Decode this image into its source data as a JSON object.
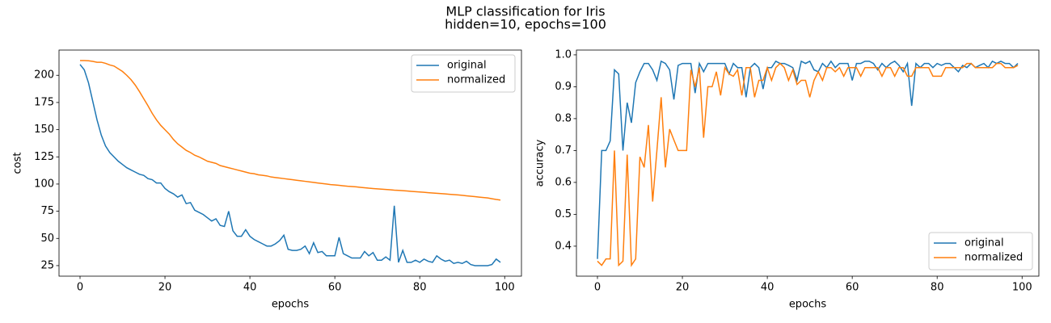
{
  "suptitle": [
    "MLP classification for Iris",
    "hidden=10, epochs=100"
  ],
  "chart_data": [
    {
      "type": "line",
      "xlabel": "epochs",
      "ylabel": "cost",
      "x": [
        0,
        1,
        2,
        3,
        4,
        5,
        6,
        7,
        8,
        9,
        10,
        11,
        12,
        13,
        14,
        15,
        16,
        17,
        18,
        19,
        20,
        21,
        22,
        23,
        24,
        25,
        26,
        27,
        28,
        29,
        30,
        31,
        32,
        33,
        34,
        35,
        36,
        37,
        38,
        39,
        40,
        41,
        42,
        43,
        44,
        45,
        46,
        47,
        48,
        49,
        50,
        51,
        52,
        53,
        54,
        55,
        56,
        57,
        58,
        59,
        60,
        61,
        62,
        63,
        64,
        65,
        66,
        67,
        68,
        69,
        70,
        71,
        72,
        73,
        74,
        75,
        76,
        77,
        78,
        79,
        80,
        81,
        82,
        83,
        84,
        85,
        86,
        87,
        88,
        89,
        90,
        91,
        92,
        93,
        94,
        95,
        96,
        97,
        98,
        99
      ],
      "xlim": [
        -4.95,
        103.95
      ],
      "xticks": [
        0,
        20,
        40,
        60,
        80,
        100
      ],
      "ylim": [
        15.3,
        223.2
      ],
      "yticks": [
        25,
        50,
        75,
        100,
        125,
        150,
        175,
        200
      ],
      "legend": "upper right",
      "series": [
        {
          "name": "original",
          "color": "#1f77b4",
          "values": [
            210,
            205,
            193,
            176,
            159,
            145,
            135,
            129,
            125,
            121,
            118,
            115,
            113,
            111,
            109,
            108,
            105,
            104,
            101,
            101,
            96,
            93,
            91,
            88,
            90,
            82,
            83,
            76,
            74,
            72,
            69,
            66,
            68,
            62,
            61,
            75,
            57,
            52,
            52,
            58,
            52,
            49,
            47,
            45,
            43,
            43,
            45,
            48,
            53,
            40,
            39,
            39,
            40,
            43,
            36,
            46,
            37,
            38,
            34,
            34,
            34,
            51,
            36,
            34,
            32,
            32,
            32,
            38,
            34,
            37,
            30,
            30,
            33,
            30,
            80,
            28,
            39,
            28,
            28,
            30,
            28,
            31,
            29,
            28,
            34,
            31,
            29,
            30,
            27,
            28,
            27,
            29,
            26,
            25,
            25,
            25,
            25,
            26,
            31,
            28
          ]
        },
        {
          "name": "normalized",
          "color": "#ff7f0e",
          "values": [
            213.5,
            213.5,
            213.4,
            212.8,
            212,
            212,
            211,
            209.5,
            208.5,
            206,
            203.5,
            200,
            196,
            191,
            185,
            178.5,
            172,
            165,
            159,
            154,
            150,
            146,
            141,
            137,
            134,
            131,
            129,
            126.5,
            125,
            123,
            121,
            120,
            119,
            117,
            116,
            115,
            114,
            113,
            112,
            111,
            110,
            109.5,
            108.5,
            108,
            107.5,
            106.5,
            106,
            105.5,
            105,
            104.5,
            104,
            103.5,
            103,
            102.5,
            102,
            101.5,
            101,
            100.5,
            100,
            99.5,
            99.2,
            98.8,
            98.4,
            98,
            97.7,
            97.4,
            97,
            96.6,
            96.2,
            95.9,
            95.6,
            95.3,
            95,
            94.7,
            94.4,
            94.2,
            93.9,
            93.6,
            93.3,
            93,
            92.7,
            92.4,
            92.1,
            91.8,
            91.5,
            91.2,
            90.9,
            90.6,
            90.3,
            90,
            89.6,
            89.2,
            88.8,
            88.4,
            88,
            87.6,
            87.2,
            86.5,
            85.8,
            85.3
          ]
        }
      ]
    },
    {
      "type": "line",
      "xlabel": "epochs",
      "ylabel": "accuracy",
      "x": [
        0,
        1,
        2,
        3,
        4,
        5,
        6,
        7,
        8,
        9,
        10,
        11,
        12,
        13,
        14,
        15,
        16,
        17,
        18,
        19,
        20,
        21,
        22,
        23,
        24,
        25,
        26,
        27,
        28,
        29,
        30,
        31,
        32,
        33,
        34,
        35,
        36,
        37,
        38,
        39,
        40,
        41,
        42,
        43,
        44,
        45,
        46,
        47,
        48,
        49,
        50,
        51,
        52,
        53,
        54,
        55,
        56,
        57,
        58,
        59,
        60,
        61,
        62,
        63,
        64,
        65,
        66,
        67,
        68,
        69,
        70,
        71,
        72,
        73,
        74,
        75,
        76,
        77,
        78,
        79,
        80,
        81,
        82,
        83,
        84,
        85,
        86,
        87,
        88,
        89,
        90,
        91,
        92,
        93,
        94,
        95,
        96,
        97,
        98,
        99
      ],
      "xlim": [
        -4.95,
        103.95
      ],
      "xticks": [
        0,
        20,
        40,
        60,
        80,
        100
      ],
      "ylim": [
        0.306,
        1.015
      ],
      "yticks": [
        0.4,
        0.5,
        0.6,
        0.7,
        0.8,
        0.9,
        {
          "value": 1,
          "label": "1.0"
        }
      ],
      "legend": "lower right",
      "series": [
        {
          "name": "original",
          "color": "#1f77b4",
          "values": [
            0.36,
            0.7,
            0.7,
            0.73,
            0.953,
            0.94,
            0.7,
            0.85,
            0.787,
            0.913,
            0.947,
            0.973,
            0.973,
            0.953,
            0.92,
            0.98,
            0.973,
            0.953,
            0.86,
            0.967,
            0.973,
            0.973,
            0.973,
            0.88,
            0.973,
            0.947,
            0.973,
            0.973,
            0.973,
            0.973,
            0.973,
            0.94,
            0.973,
            0.96,
            0.96,
            0.867,
            0.96,
            0.973,
            0.96,
            0.893,
            0.96,
            0.96,
            0.98,
            0.973,
            0.973,
            0.967,
            0.96,
            0.92,
            0.98,
            0.973,
            0.98,
            0.953,
            0.947,
            0.973,
            0.96,
            0.98,
            0.96,
            0.973,
            0.973,
            0.973,
            0.92,
            0.973,
            0.973,
            0.98,
            0.98,
            0.973,
            0.953,
            0.973,
            0.96,
            0.973,
            0.98,
            0.967,
            0.947,
            0.973,
            0.84,
            0.973,
            0.96,
            0.973,
            0.973,
            0.96,
            0.973,
            0.967,
            0.973,
            0.973,
            0.96,
            0.947,
            0.967,
            0.96,
            0.973,
            0.96,
            0.967,
            0.973,
            0.96,
            0.98,
            0.973,
            0.98,
            0.973,
            0.973,
            0.96,
            0.973
          ]
        },
        {
          "name": "normalized",
          "color": "#ff7f0e",
          "values": [
            0.353,
            0.34,
            0.36,
            0.36,
            0.7,
            0.34,
            0.353,
            0.687,
            0.34,
            0.36,
            0.68,
            0.647,
            0.78,
            0.54,
            0.7,
            0.867,
            0.647,
            0.767,
            0.733,
            0.7,
            0.7,
            0.7,
            0.953,
            0.9,
            0.96,
            0.74,
            0.9,
            0.9,
            0.947,
            0.873,
            0.96,
            0.94,
            0.933,
            0.953,
            0.873,
            0.96,
            0.96,
            0.867,
            0.92,
            0.92,
            0.96,
            0.92,
            0.96,
            0.973,
            0.96,
            0.92,
            0.953,
            0.907,
            0.92,
            0.92,
            0.867,
            0.92,
            0.947,
            0.92,
            0.96,
            0.96,
            0.947,
            0.96,
            0.933,
            0.96,
            0.96,
            0.96,
            0.933,
            0.96,
            0.96,
            0.96,
            0.96,
            0.933,
            0.96,
            0.96,
            0.933,
            0.96,
            0.96,
            0.933,
            0.933,
            0.96,
            0.96,
            0.96,
            0.96,
            0.933,
            0.933,
            0.933,
            0.96,
            0.96,
            0.96,
            0.96,
            0.96,
            0.973,
            0.973,
            0.96,
            0.96,
            0.96,
            0.96,
            0.96,
            0.973,
            0.973,
            0.96,
            0.96,
            0.96,
            0.967
          ]
        }
      ]
    }
  ]
}
